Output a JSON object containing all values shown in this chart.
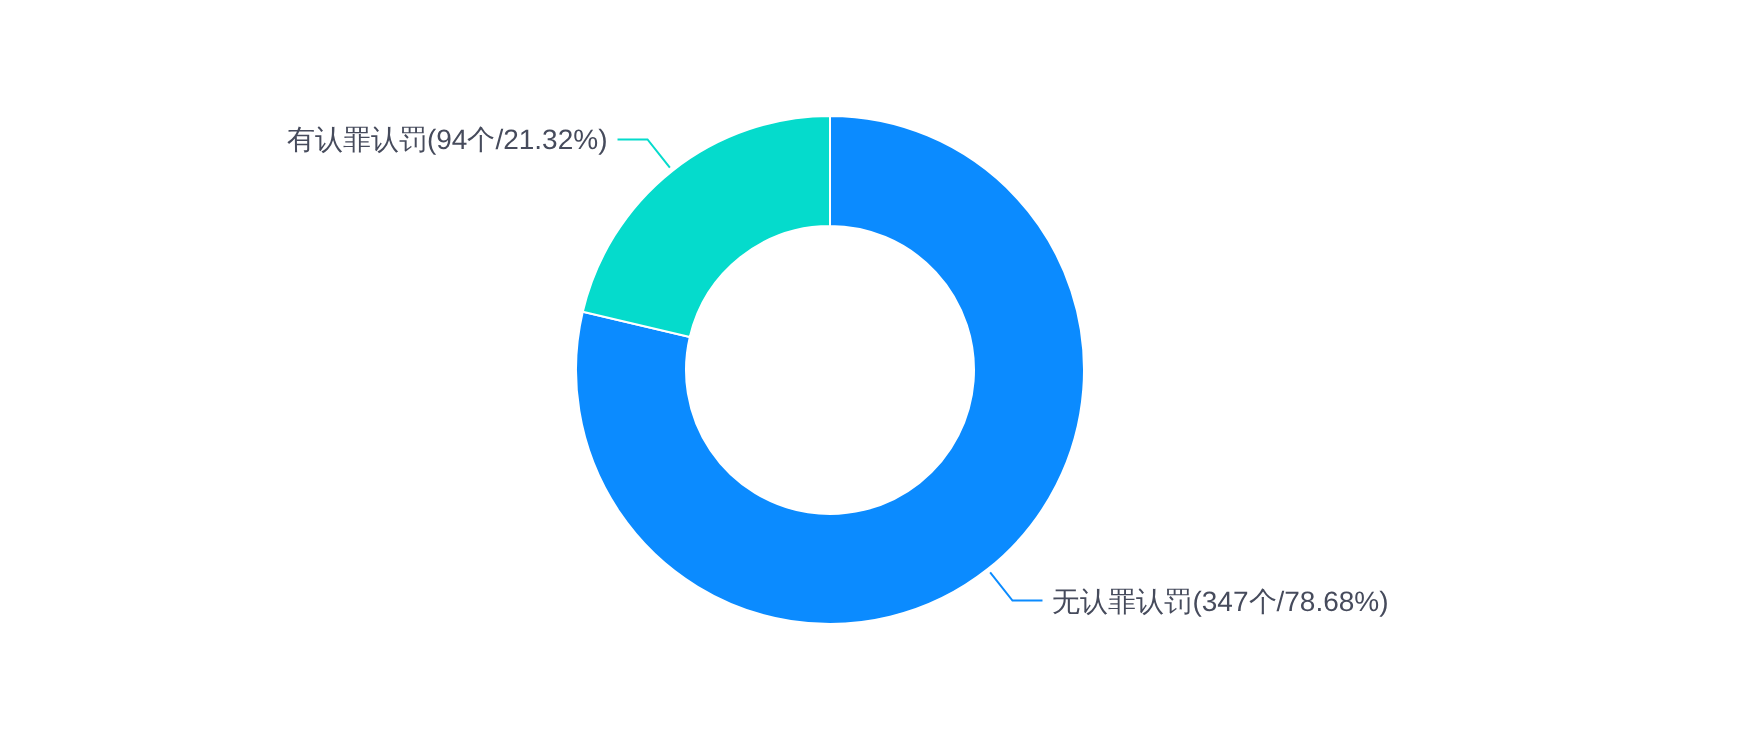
{
  "chart_data": {
    "type": "donut",
    "categories": [
      "无认罪认罚",
      "有认罪认罚"
    ],
    "values": [
      347,
      94
    ],
    "value_labels": [
      "(347个/78.68%)",
      "(94个/21.32%)"
    ],
    "colors": [
      "#0b8bff",
      "#05dbcc"
    ]
  }
}
